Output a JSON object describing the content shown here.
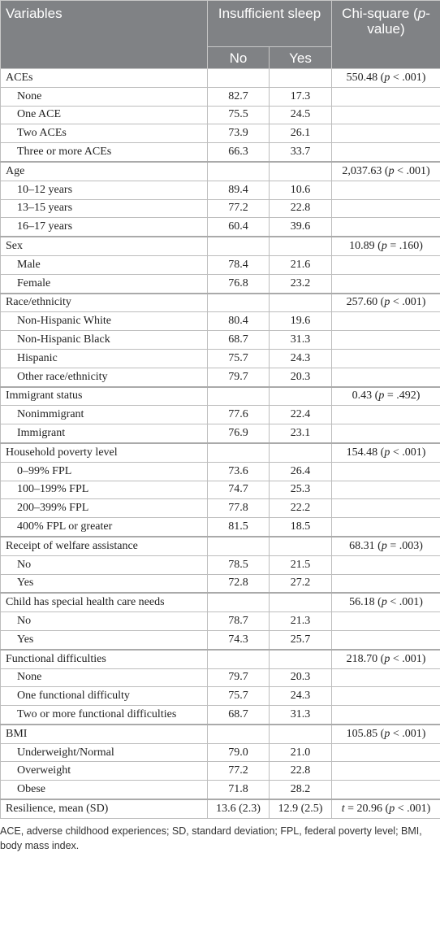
{
  "table": {
    "header": {
      "variables": "Variables",
      "group": "Insufficient sleep",
      "no": "No",
      "yes": "Yes",
      "chi": "Chi-square (p-value)"
    },
    "groups": [
      {
        "label": "ACEs",
        "chi": "550.48 (p < .001)",
        "rows": [
          [
            "None",
            "82.7",
            "17.3"
          ],
          [
            "One ACE",
            "75.5",
            "24.5"
          ],
          [
            "Two ACEs",
            "73.9",
            "26.1"
          ],
          [
            "Three or more ACEs",
            "66.3",
            "33.7"
          ]
        ]
      },
      {
        "label": "Age",
        "chi": "2,037.63 (p < .001)",
        "rows": [
          [
            "10–12 years",
            "89.4",
            "10.6"
          ],
          [
            "13–15 years",
            "77.2",
            "22.8"
          ],
          [
            "16–17 years",
            "60.4",
            "39.6"
          ]
        ]
      },
      {
        "label": "Sex",
        "chi": "10.89 (p = .160)",
        "rows": [
          [
            "Male",
            "78.4",
            "21.6"
          ],
          [
            "Female",
            "76.8",
            "23.2"
          ]
        ]
      },
      {
        "label": "Race/ethnicity",
        "chi": "257.60 (p < .001)",
        "rows": [
          [
            "Non-Hispanic White",
            "80.4",
            "19.6"
          ],
          [
            "Non-Hispanic Black",
            "68.7",
            "31.3"
          ],
          [
            "Hispanic",
            "75.7",
            "24.3"
          ],
          [
            "Other race/ethnicity",
            "79.7",
            "20.3"
          ]
        ]
      },
      {
        "label": "Immigrant status",
        "chi": "0.43 (p = .492)",
        "rows": [
          [
            "Nonimmigrant",
            "77.6",
            "22.4"
          ],
          [
            "Immigrant",
            "76.9",
            "23.1"
          ]
        ]
      },
      {
        "label": "Household poverty level",
        "chi": "154.48 (p < .001)",
        "rows": [
          [
            "0–99% FPL",
            "73.6",
            "26.4"
          ],
          [
            "100–199% FPL",
            "74.7",
            "25.3"
          ],
          [
            "200–399% FPL",
            "77.8",
            "22.2"
          ],
          [
            "400% FPL or greater",
            "81.5",
            "18.5"
          ]
        ]
      },
      {
        "label": "Receipt of welfare assistance",
        "chi": "68.31 (p = .003)",
        "rows": [
          [
            "No",
            "78.5",
            "21.5"
          ],
          [
            "Yes",
            "72.8",
            "27.2"
          ]
        ]
      },
      {
        "label": "Child has special health care needs",
        "chi": "56.18 (p < .001)",
        "rows": [
          [
            "No",
            "78.7",
            "21.3"
          ],
          [
            "Yes",
            "74.3",
            "25.7"
          ]
        ]
      },
      {
        "label": "Functional difficulties",
        "chi": "218.70 (p < .001)",
        "rows": [
          [
            "None",
            "79.7",
            "20.3"
          ],
          [
            "One functional difficulty",
            "75.7",
            "24.3"
          ],
          [
            "Two or more functional difficulties",
            "68.7",
            "31.3"
          ]
        ]
      },
      {
        "label": "BMI",
        "chi": "105.85 (p < .001)",
        "rows": [
          [
            "Underweight/Normal",
            "79.0",
            "21.0"
          ],
          [
            "Overweight",
            "77.2",
            "22.8"
          ],
          [
            "Obese",
            "71.8",
            "28.2"
          ]
        ]
      },
      {
        "label": "Resilience, mean (SD)",
        "no": "13.6 (2.3)",
        "yes": "12.9 (2.5)",
        "chi": "t = 20.96 (p < .001)",
        "rows": []
      }
    ]
  },
  "footnote": "ACE, adverse childhood experiences; SD, standard deviation; FPL, federal poverty level; BMI, body mass index."
}
